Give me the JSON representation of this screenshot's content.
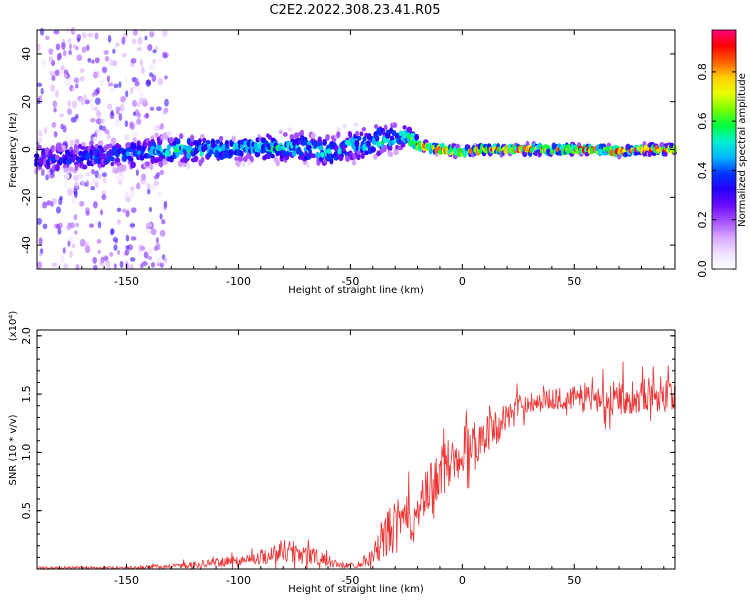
{
  "figure": {
    "title": "C2E2.2022.308.23.41.R05"
  },
  "chart_data": [
    {
      "type": "heatmap",
      "name": "spectrogram",
      "xlabel": "Height of straight line (km)",
      "ylabel": "Frequency (Hz)",
      "xlim": [
        -190,
        95
      ],
      "ylim": [
        -50,
        50
      ],
      "xticks": [
        -150,
        -100,
        -50,
        0,
        50
      ],
      "yticks": [
        -40,
        -20,
        0,
        20,
        40
      ],
      "colorbar": {
        "label": "Normalized spectral amplitude",
        "range": [
          0.0,
          0.97
        ],
        "ticks": [
          0.0,
          0.2,
          0.4,
          0.6,
          0.8
        ],
        "colormap": [
          "#ffffff",
          "#f0e0ff",
          "#d7a6ff",
          "#a450ff",
          "#6a0cff",
          "#2600ff",
          "#0036ff",
          "#00b7ff",
          "#00f0d0",
          "#00ff40",
          "#78ff00",
          "#e8ff00",
          "#ffd000",
          "#ff6000",
          "#ff0000",
          "#ff007a"
        ]
      },
      "ridge": {
        "x": [
          -190,
          -170,
          -150,
          -130,
          -110,
          -90,
          -70,
          -60,
          -50,
          -40,
          -30,
          -25,
          -20,
          -10,
          0,
          10,
          20,
          30,
          40,
          50,
          60,
          70,
          80,
          95
        ],
        "center": [
          -4,
          -3,
          -2,
          0,
          0,
          1,
          1,
          -1,
          2,
          3,
          5,
          6,
          2,
          0,
          -1,
          0,
          0,
          0,
          0,
          0,
          0,
          -1,
          0,
          0
        ],
        "width": [
          7,
          7,
          7,
          7,
          6,
          6,
          7,
          7,
          8,
          8,
          7,
          5,
          2.5,
          2.5,
          2,
          2,
          2,
          2,
          2,
          2,
          2,
          2,
          2,
          2
        ],
        "peak": [
          0.35,
          0.38,
          0.42,
          0.5,
          0.5,
          0.5,
          0.5,
          0.5,
          0.45,
          0.5,
          0.5,
          0.55,
          0.85,
          0.8,
          0.8,
          0.85,
          0.85,
          0.85,
          0.85,
          0.85,
          0.85,
          0.85,
          0.85,
          0.85
        ]
      },
      "scatter_region": {
        "x": [
          -190,
          -132
        ],
        "y": [
          -50,
          50
        ]
      }
    },
    {
      "type": "line",
      "name": "snr",
      "xlabel": "Height of straight line (km)",
      "ylabel": "SNR (10 * v/v)",
      "y_multiplier": "(x10⁴)",
      "xlim": [
        -190,
        95
      ],
      "ylim": [
        0,
        2.05
      ],
      "xticks": [
        -150,
        -100,
        -50,
        0,
        50
      ],
      "yticks": [
        0.5,
        1.0,
        1.5,
        2.0
      ],
      "ytick_labels": [
        "0.5",
        "1.0",
        "1.5",
        "2.0"
      ],
      "line_color": "#ee3333",
      "envelope": {
        "x": [
          -190,
          -150,
          -130,
          -110,
          -95,
          -85,
          -78,
          -70,
          -62,
          -55,
          -48,
          -40,
          -35,
          -30,
          -25,
          -20,
          -15,
          -10,
          -5,
          0,
          5,
          10,
          15,
          20,
          25,
          30,
          40,
          50,
          60,
          70,
          80,
          90,
          95
        ],
        "base": [
          0.01,
          0.01,
          0.02,
          0.05,
          0.08,
          0.12,
          0.15,
          0.12,
          0.07,
          0.03,
          0.03,
          0.1,
          0.25,
          0.35,
          0.4,
          0.45,
          0.65,
          0.8,
          0.9,
          1.0,
          1.05,
          1.15,
          1.2,
          1.3,
          1.38,
          1.42,
          1.45,
          1.45,
          1.45,
          1.45,
          1.48,
          1.5,
          1.5
        ],
        "noise": [
          0.02,
          0.02,
          0.04,
          0.07,
          0.1,
          0.16,
          0.22,
          0.2,
          0.12,
          0.05,
          0.05,
          0.15,
          0.4,
          0.45,
          0.4,
          0.4,
          0.45,
          0.45,
          0.45,
          0.45,
          0.4,
          0.35,
          0.3,
          0.25,
          0.2,
          0.18,
          0.18,
          0.22,
          0.28,
          0.3,
          0.3,
          0.3,
          0.3
        ]
      }
    }
  ]
}
